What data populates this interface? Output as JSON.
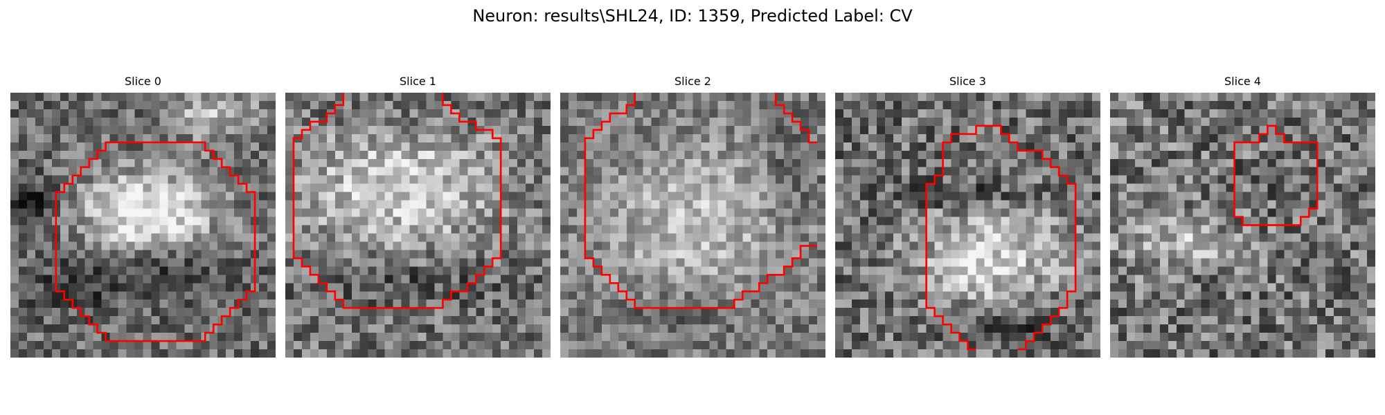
{
  "figure": {
    "title": "Neuron: results\\SHL24, ID: 1359, Predicted Label: CV"
  },
  "colors": {
    "background": "#ffffff",
    "roi_outline": "#ff0000",
    "colormap": "gray"
  },
  "panels": [
    {
      "title": "Slice 0"
    },
    {
      "title": "Slice 1"
    },
    {
      "title": "Slice 2"
    },
    {
      "title": "Slice 3"
    },
    {
      "title": "Slice 4"
    }
  ]
}
